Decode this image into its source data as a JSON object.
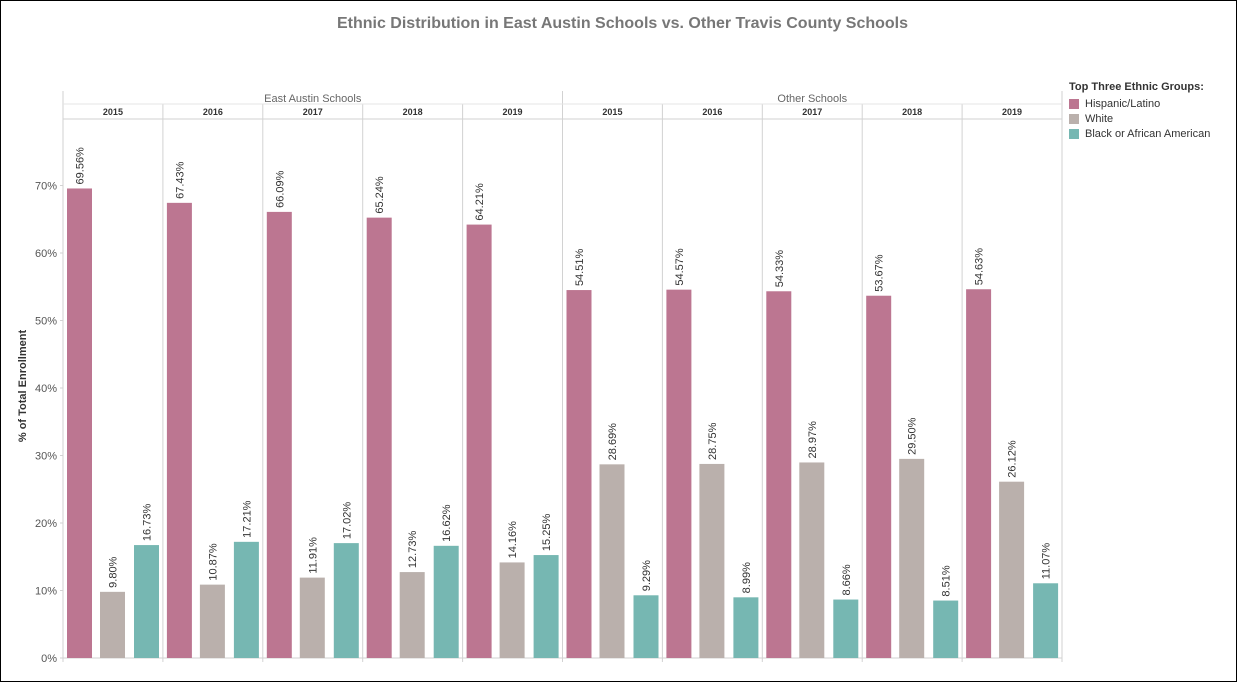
{
  "chart_data": {
    "type": "bar",
    "title": "Ethnic Distribution in East Austin Schools vs. Other Travis County Schools",
    "ylabel": "% of Total Enrollment",
    "ylim": [
      0,
      80
    ],
    "y_ticks": [
      "0%",
      "10%",
      "20%",
      "30%",
      "40%",
      "50%",
      "60%",
      "70%"
    ],
    "grid": false,
    "legend_title": "Top Three Ethnic Groups:",
    "legend_position": "top-right",
    "groups": [
      {
        "name": "East Austin Schools",
        "years": [
          "2015",
          "2016",
          "2017",
          "2018",
          "2019"
        ]
      },
      {
        "name": "Other Schools",
        "years": [
          "2015",
          "2016",
          "2017",
          "2018",
          "2019"
        ]
      }
    ],
    "series": [
      {
        "name": "Hispanic/Latino",
        "color": "#bc7691",
        "values": [
          69.56,
          67.43,
          66.09,
          65.24,
          64.21,
          54.51,
          54.57,
          54.33,
          53.67,
          54.63
        ],
        "labels": [
          "69.56%",
          "67.43%",
          "66.09%",
          "65.24%",
          "64.21%",
          "54.51%",
          "54.57%",
          "54.33%",
          "53.67%",
          "54.63%"
        ]
      },
      {
        "name": "White",
        "color": "#bab0ac",
        "values": [
          9.8,
          10.87,
          11.91,
          12.73,
          14.16,
          28.69,
          28.75,
          28.97,
          29.5,
          26.12
        ],
        "labels": [
          "9.80%",
          "10.87%",
          "11.91%",
          "12.73%",
          "14.16%",
          "28.69%",
          "28.75%",
          "28.97%",
          "29.50%",
          "26.12%"
        ]
      },
      {
        "name": "Black or African American",
        "color": "#76b7b2",
        "values": [
          16.73,
          17.21,
          17.02,
          16.62,
          15.25,
          9.29,
          8.99,
          8.66,
          8.51,
          11.07
        ],
        "labels": [
          "16.73%",
          "17.21%",
          "17.02%",
          "16.62%",
          "15.25%",
          "9.29%",
          "8.99%",
          "8.66%",
          "8.51%",
          "11.07%"
        ]
      }
    ]
  }
}
